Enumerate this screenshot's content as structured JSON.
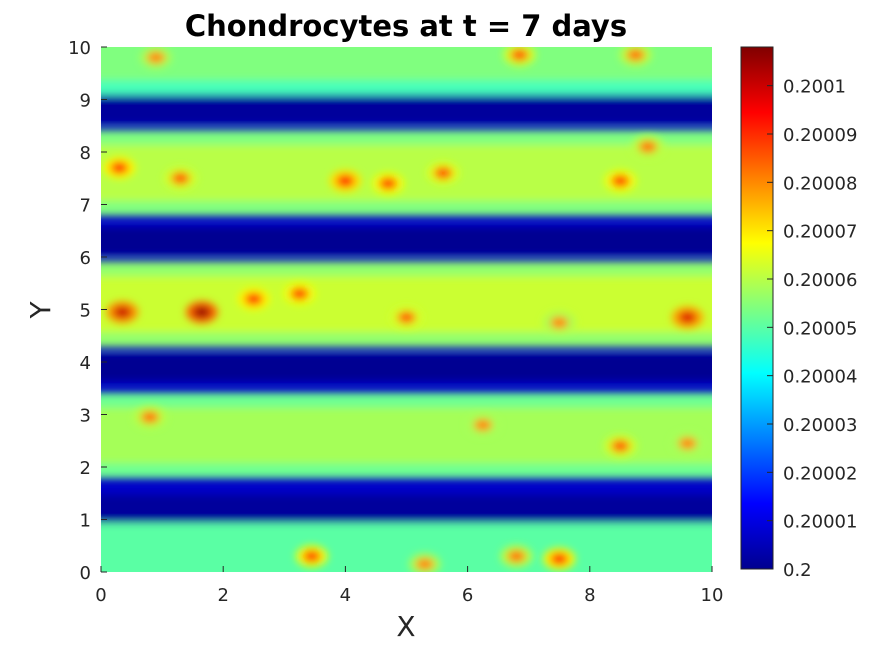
{
  "chart_data": {
    "type": "heatmap",
    "title": "Chondrocytes at t = 7 days",
    "xlabel": "X",
    "ylabel": "Y",
    "xlim": [
      0,
      10
    ],
    "ylim": [
      0,
      10
    ],
    "x_ticks": [
      "0",
      "2",
      "4",
      "6",
      "8",
      "10"
    ],
    "y_ticks": [
      "0",
      "1",
      "2",
      "3",
      "4",
      "5",
      "6",
      "7",
      "8",
      "9",
      "10"
    ],
    "colormap": "jet",
    "colorbar": {
      "range": [
        0.2,
        0.200108
      ],
      "ticks": [
        {
          "value": 0.2,
          "label": "0.2"
        },
        {
          "value": 0.20001,
          "label": "0.20001"
        },
        {
          "value": 0.20002,
          "label": "0.20002"
        },
        {
          "value": 0.20003,
          "label": "0.20003"
        },
        {
          "value": 0.20004,
          "label": "0.20004"
        },
        {
          "value": 0.20005,
          "label": "0.20005"
        },
        {
          "value": 0.20006,
          "label": "0.20006"
        },
        {
          "value": 0.20007,
          "label": "0.20007"
        },
        {
          "value": 0.20008,
          "label": "0.20008"
        },
        {
          "value": 0.20009,
          "label": "0.20009"
        },
        {
          "value": 0.2001,
          "label": "0.2001"
        }
      ]
    },
    "bands": [
      {
        "y_center": 0.4,
        "level": 0.200044
      },
      {
        "y_center": 2.6,
        "level": 0.200052
      },
      {
        "y_center": 5.1,
        "level": 0.200056
      },
      {
        "y_center": 7.6,
        "level": 0.200054
      },
      {
        "y_center": 9.9,
        "level": 0.200048
      }
    ],
    "troughs": [
      {
        "y_center": 1.2,
        "level": 0.200003
      },
      {
        "y_center": 3.9,
        "level": 0.200002
      },
      {
        "y_center": 6.3,
        "level": 0.200002
      },
      {
        "y_center": 8.8,
        "level": 0.200003
      }
    ],
    "hotspots": [
      {
        "x": 0.35,
        "y": 4.95,
        "value": 0.2001
      },
      {
        "x": 1.65,
        "y": 4.95,
        "value": 0.200105
      },
      {
        "x": 2.5,
        "y": 5.2,
        "value": 0.20009
      },
      {
        "x": 3.25,
        "y": 5.3,
        "value": 0.200088
      },
      {
        "x": 5.0,
        "y": 4.85,
        "value": 0.200085
      },
      {
        "x": 9.6,
        "y": 4.85,
        "value": 0.200098
      },
      {
        "x": 7.5,
        "y": 4.75,
        "value": 0.20008
      },
      {
        "x": 0.3,
        "y": 7.7,
        "value": 0.20009
      },
      {
        "x": 1.3,
        "y": 7.5,
        "value": 0.200085
      },
      {
        "x": 4.0,
        "y": 7.45,
        "value": 0.200092
      },
      {
        "x": 4.7,
        "y": 7.4,
        "value": 0.200088
      },
      {
        "x": 5.6,
        "y": 7.6,
        "value": 0.200086
      },
      {
        "x": 8.5,
        "y": 7.45,
        "value": 0.200088
      },
      {
        "x": 8.95,
        "y": 8.1,
        "value": 0.200082
      },
      {
        "x": 6.85,
        "y": 9.85,
        "value": 0.200085
      },
      {
        "x": 8.75,
        "y": 9.85,
        "value": 0.200082
      },
      {
        "x": 0.9,
        "y": 9.8,
        "value": 0.20008
      },
      {
        "x": 0.8,
        "y": 2.95,
        "value": 0.200082
      },
      {
        "x": 6.25,
        "y": 2.8,
        "value": 0.20008
      },
      {
        "x": 8.5,
        "y": 2.4,
        "value": 0.200085
      },
      {
        "x": 9.6,
        "y": 2.45,
        "value": 0.20008
      },
      {
        "x": 7.5,
        "y": 0.25,
        "value": 0.20009
      },
      {
        "x": 6.8,
        "y": 0.3,
        "value": 0.200082
      },
      {
        "x": 3.45,
        "y": 0.3,
        "value": 0.200088
      },
      {
        "x": 5.3,
        "y": 0.15,
        "value": 0.20008
      }
    ]
  }
}
